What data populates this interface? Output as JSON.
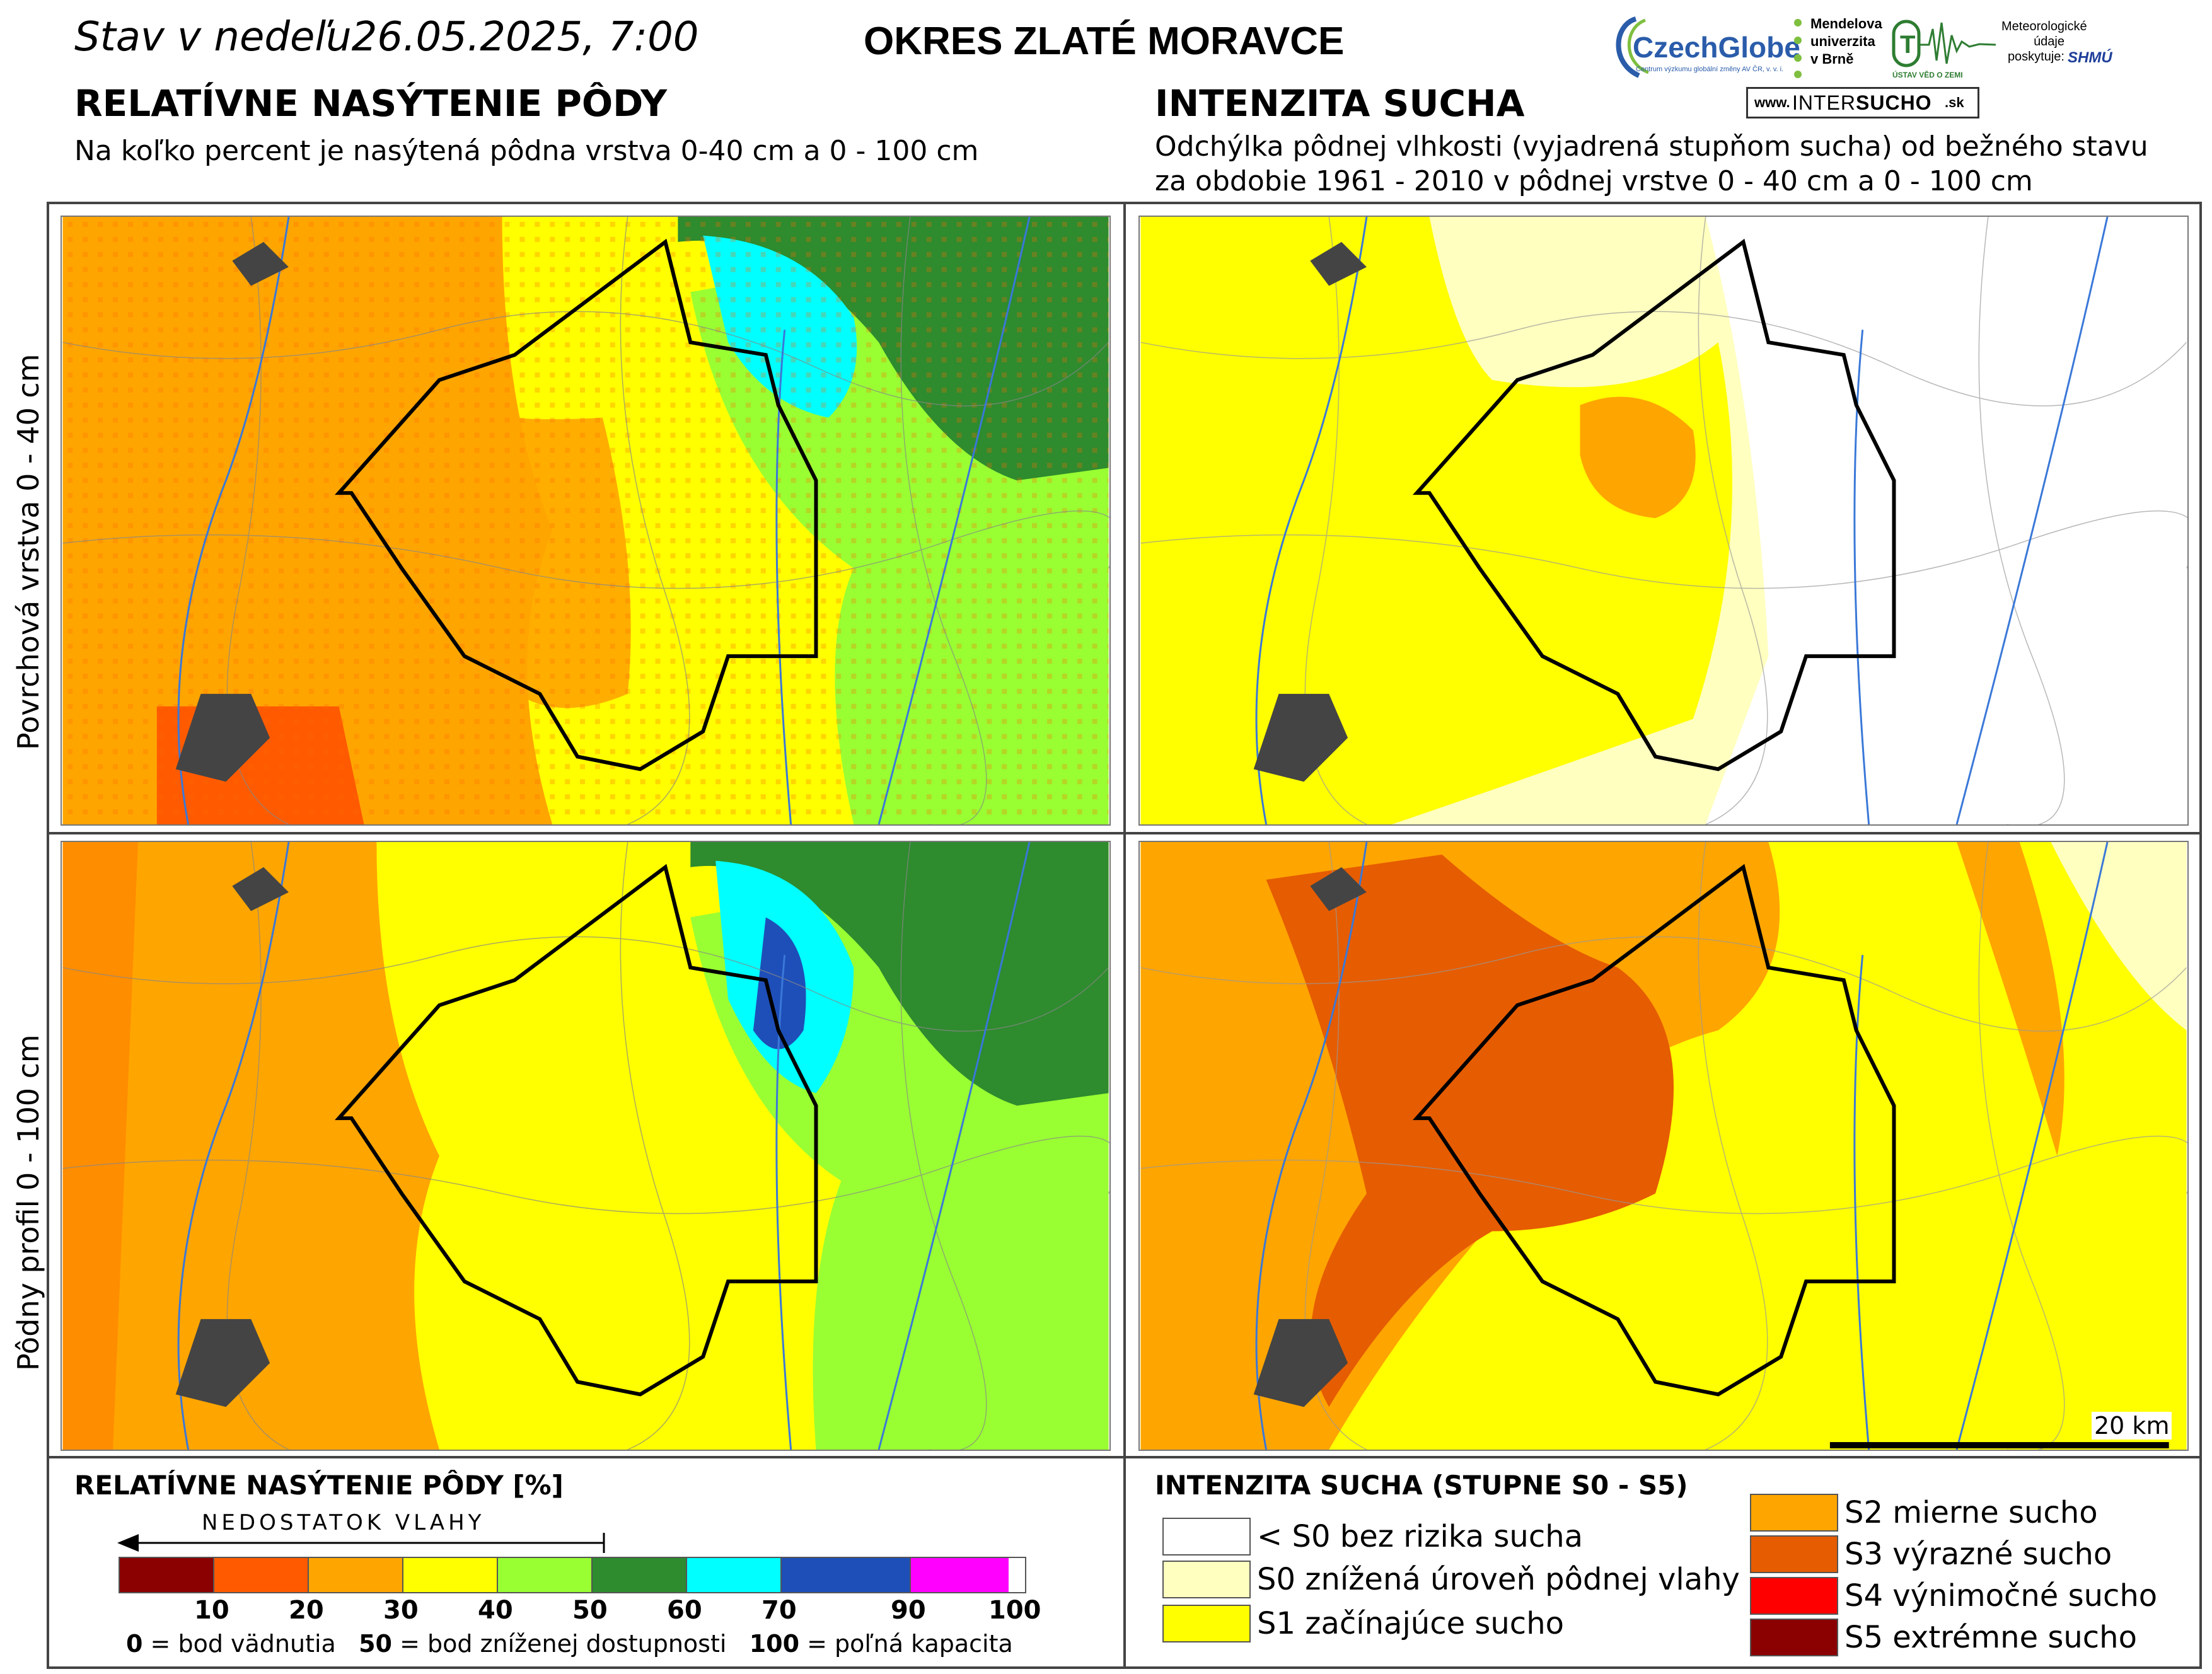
{
  "header": {
    "date_line": "Stav v nedeľu26.05.2025, 7:00",
    "district_title": "OKRES  ZLATÉ MORAVCE"
  },
  "left_section": {
    "title": "RELATÍVNE NASÝTENIE PÔDY",
    "subtitle": "Na koľko percent je nasýtená pôdna vrstva 0-40 cm a 0 - 100 cm"
  },
  "right_section": {
    "title": "INTENZITA SUCHA",
    "subtitle_line1": "Odchýlka pôdnej vlhkosti (vyjadrená stupňom sucha) od bežného stavu",
    "subtitle_line2": "za obdobie 1961 - 2010 v pôdnej vrstve 0 - 40 cm a 0 - 100 cm"
  },
  "logos": {
    "czechglobe": "CzechGlobe",
    "czechglobe_small": "Centrum výzkumu globální změny AV ČR, v. v. i.",
    "mendel_line1": "Mendelova",
    "mendel_line2": "univerzita",
    "mendel_line3": "v Brně",
    "uvz_small": "ÚSTAV VĚD O ZEMI",
    "meteo_line1": "Meteorologické",
    "meteo_line2": "údaje",
    "meteo_line3": "poskytuje:",
    "shmu": "SHMÚ",
    "intersucho_www": "www.",
    "intersucho_name_a": "INTER",
    "intersucho_name_b": "SUCHO",
    "intersucho_tld": ".sk"
  },
  "rows": {
    "top_label": "Povrchová vrstva 0 - 40 cm",
    "bottom_label": "Pôdny profil 0 - 100 cm"
  },
  "scalebar": {
    "label": "20 km"
  },
  "saturation_legend": {
    "title": "RELATÍVNE NASÝTENIE PÔDY [%]",
    "arrow_label": "NEDOSTATOK VLAHY",
    "bins": [
      {
        "color": "#8b0000"
      },
      {
        "color": "#ff5a00"
      },
      {
        "color": "#ffa500"
      },
      {
        "color": "#ffff00"
      },
      {
        "color": "#99ff33"
      },
      {
        "color": "#2e8b2e"
      },
      {
        "color": "#00ffff"
      },
      {
        "color": "#1e4fb8"
      },
      {
        "color": "#ff00ff"
      }
    ],
    "ticks": [
      "10",
      "20",
      "30",
      "40",
      "50",
      "60",
      "70",
      "90",
      "100"
    ],
    "note_0_num": "0",
    "note_0_text": "= bod vädnutia",
    "note_50_num": "50",
    "note_50_text": "= bod zníženej dostupnosti",
    "note_100_num": "100",
    "note_100_text": "= poľná kapacita"
  },
  "drought_legend": {
    "title": "INTENZITA SUCHA (STUPNE S0 - S5)",
    "items": [
      {
        "label": "< S0 bez rizika sucha",
        "color": "#ffffff"
      },
      {
        "label": "S0 znížená úroveň pôdnej vlahy",
        "color": "#ffffc0"
      },
      {
        "label": "S1 začínajúce sucho",
        "color": "#ffff00"
      },
      {
        "label": "S2 mierne sucho",
        "color": "#ffa500"
      },
      {
        "label": "S3 výrazné sucho",
        "color": "#e65c00"
      },
      {
        "label": "S4 výnimočné sucho",
        "color": "#ff0000"
      },
      {
        "label": "S5 extrémne sucho",
        "color": "#8b0000"
      }
    ]
  }
}
